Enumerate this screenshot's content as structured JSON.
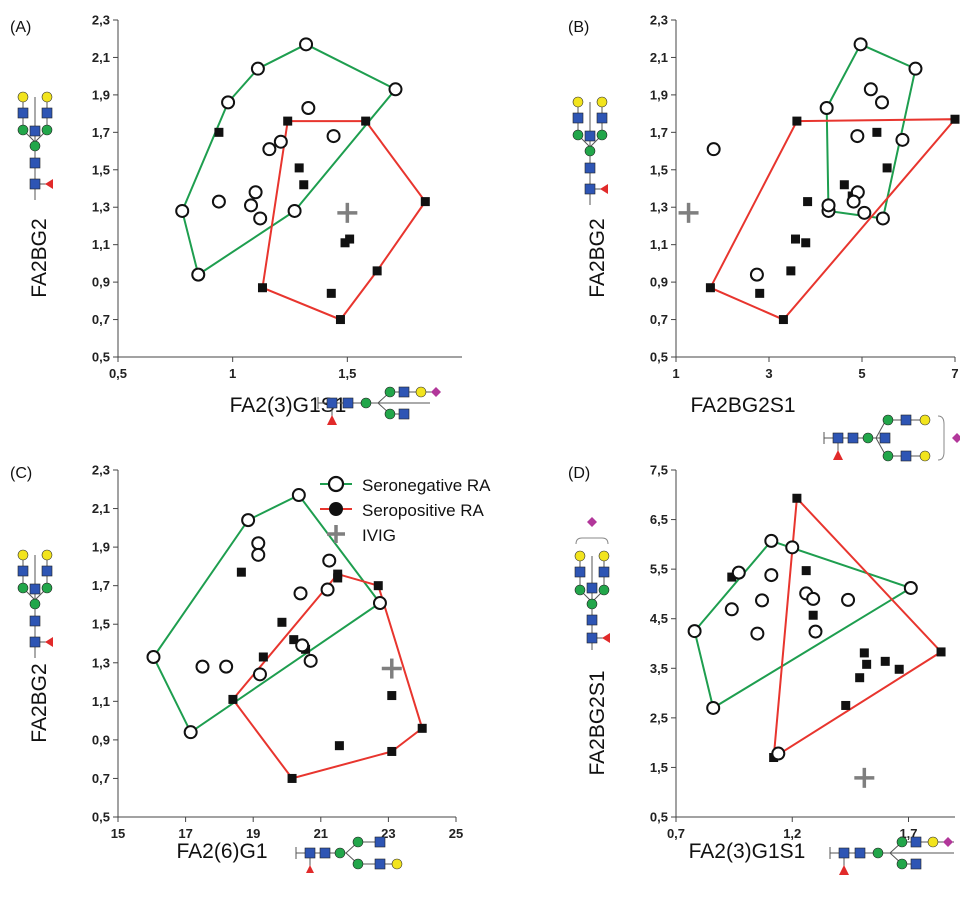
{
  "legend": {
    "items": [
      {
        "label": "Seronegative RA",
        "line_color": "#1e9e4f",
        "marker": "open-circle"
      },
      {
        "label": "Seropositive RA",
        "line_color": "#e8352e",
        "marker": "filled-circle"
      },
      {
        "label": "IVIG",
        "line_color": "#7f7f7f",
        "marker": "cross"
      }
    ]
  },
  "colors": {
    "seronegative": "#1e9e4f",
    "seropositive": "#e8352e",
    "ivig": "#7f7f7f",
    "glycan_blue": "#2e55b4",
    "glycan_green": "#22a64a",
    "glycan_yellow": "#f2e41d",
    "glycan_red": "#e12a2a",
    "glycan_purple": "#b2379a"
  },
  "chart_data": [
    {
      "type": "scatter",
      "panel_label": "(A)",
      "xlabel": "FA2(3)G1S1",
      "ylabel": "FA2BG2",
      "xlim": [
        0.5,
        2.0
      ],
      "ylim": [
        0.5,
        2.3
      ],
      "xticks": [
        "0,5",
        "1",
        "1,5"
      ],
      "yticks": [
        "0,5",
        "0,7",
        "0,9",
        "1,1",
        "1,3",
        "1,5",
        "1,7",
        "1,9",
        "2,1",
        "2,3"
      ],
      "seronegative_hull": [
        [
          0.78,
          1.28
        ],
        [
          0.98,
          1.86
        ],
        [
          1.11,
          2.04
        ],
        [
          1.32,
          2.17
        ],
        [
          1.71,
          1.93
        ],
        [
          1.27,
          1.28
        ],
        [
          0.85,
          0.94
        ]
      ],
      "seronegative_inner": [
        [
          0.94,
          1.33
        ],
        [
          1.08,
          1.31
        ],
        [
          1.1,
          1.38
        ],
        [
          1.12,
          1.24
        ],
        [
          1.16,
          1.61
        ],
        [
          1.21,
          1.65
        ],
        [
          1.33,
          1.83
        ],
        [
          1.44,
          1.68
        ]
      ],
      "seropositive_hull": [
        [
          1.24,
          1.76
        ],
        [
          1.58,
          1.76
        ],
        [
          1.84,
          1.33
        ],
        [
          1.63,
          0.96
        ],
        [
          1.47,
          0.7
        ],
        [
          1.13,
          0.87
        ]
      ],
      "seropositive_inner": [
        [
          0.94,
          1.7
        ],
        [
          1.29,
          1.51
        ],
        [
          1.31,
          1.42
        ],
        [
          1.49,
          1.11
        ],
        [
          1.51,
          1.13
        ],
        [
          1.43,
          0.84
        ]
      ],
      "ivig": [
        [
          1.5,
          1.27
        ]
      ]
    },
    {
      "type": "scatter",
      "panel_label": "(B)",
      "xlabel": "FA2BG2S1",
      "ylabel": "FA2BG2",
      "xlim": [
        1,
        7
      ],
      "ylim": [
        0.5,
        2.3
      ],
      "xticks": [
        "1",
        "3",
        "5",
        "7"
      ],
      "yticks": [
        "0,5",
        "0,7",
        "0,9",
        "1,1",
        "1,3",
        "1,5",
        "1,7",
        "1,9",
        "2,1",
        "2,3"
      ],
      "seronegative_hull": [
        [
          4.97,
          2.17
        ],
        [
          6.15,
          2.04
        ],
        [
          5.45,
          1.24
        ],
        [
          4.28,
          1.28
        ],
        [
          4.24,
          1.83
        ]
      ],
      "seronegative_inner": [
        [
          1.81,
          1.61
        ],
        [
          2.74,
          0.94
        ],
        [
          4.91,
          1.38
        ],
        [
          4.82,
          1.33
        ],
        [
          4.9,
          1.68
        ],
        [
          5.05,
          1.27
        ],
        [
          5.19,
          1.93
        ],
        [
          5.43,
          1.86
        ],
        [
          5.87,
          1.66
        ],
        [
          4.28,
          1.31
        ]
      ],
      "seropositive_hull": [
        [
          3.6,
          1.76
        ],
        [
          7.0,
          1.77
        ],
        [
          3.31,
          0.7
        ],
        [
          1.74,
          0.87
        ]
      ],
      "seropositive_inner": [
        [
          2.8,
          0.84
        ],
        [
          3.47,
          0.96
        ],
        [
          3.57,
          1.13
        ],
        [
          3.83,
          1.33
        ],
        [
          3.79,
          1.11
        ],
        [
          4.62,
          1.42
        ],
        [
          4.79,
          1.36
        ],
        [
          5.32,
          1.7
        ],
        [
          5.54,
          1.51
        ]
      ],
      "ivig": [
        [
          1.27,
          1.27
        ]
      ]
    },
    {
      "type": "scatter",
      "panel_label": "(C)",
      "xlabel": "FA2(6)G1",
      "ylabel": "FA2BG2",
      "xlim": [
        15,
        25
      ],
      "ylim": [
        0.5,
        2.3
      ],
      "xticks": [
        "15",
        "17",
        "19",
        "21",
        "23",
        "25"
      ],
      "yticks": [
        "0,5",
        "0,7",
        "0,9",
        "1,1",
        "1,3",
        "1,5",
        "1,7",
        "1,9",
        "2,1",
        "2,3"
      ],
      "seronegative_hull": [
        [
          16.05,
          1.33
        ],
        [
          18.85,
          2.04
        ],
        [
          20.35,
          2.17
        ],
        [
          22.75,
          1.61
        ],
        [
          17.15,
          0.94
        ]
      ],
      "seronegative_inner": [
        [
          17.5,
          1.28
        ],
        [
          18.2,
          1.28
        ],
        [
          19.15,
          1.92
        ],
        [
          19.15,
          1.86
        ],
        [
          19.2,
          1.24
        ],
        [
          20.4,
          1.66
        ],
        [
          20.45,
          1.39
        ],
        [
          20.7,
          1.31
        ],
        [
          21.2,
          1.68
        ],
        [
          21.25,
          1.83
        ]
      ],
      "seropositive_hull": [
        [
          18.4,
          1.11
        ],
        [
          21.5,
          1.76
        ],
        [
          22.7,
          1.7
        ],
        [
          24.0,
          0.96
        ],
        [
          23.1,
          0.84
        ],
        [
          20.15,
          0.7
        ]
      ],
      "seropositive_inner": [
        [
          18.65,
          1.77
        ],
        [
          19.3,
          1.33
        ],
        [
          19.85,
          1.51
        ],
        [
          20.2,
          1.42
        ],
        [
          20.55,
          1.37
        ],
        [
          21.55,
          0.87
        ],
        [
          23.1,
          1.13
        ],
        [
          21.5,
          1.74
        ]
      ],
      "ivig": [
        [
          23.1,
          1.27
        ]
      ]
    },
    {
      "type": "scatter",
      "panel_label": "(D)",
      "xlabel": "FA2(3)G1S1",
      "ylabel": "FA2BG2S1",
      "xlim": [
        0.7,
        1.9
      ],
      "ylim": [
        0.5,
        7.5
      ],
      "xticks": [
        "0,7",
        "1,2",
        "1,7"
      ],
      "yticks": [
        "0,5",
        "1,5",
        "2,5",
        "3,5",
        "4,5",
        "5,5",
        "6,5",
        "7,5"
      ],
      "seronegative_hull": [
        [
          0.78,
          4.25
        ],
        [
          1.11,
          6.07
        ],
        [
          1.71,
          5.12
        ],
        [
          0.86,
          2.7
        ]
      ],
      "seronegative_inner": [
        [
          0.97,
          5.43
        ],
        [
          1.11,
          5.38
        ],
        [
          0.94,
          4.69
        ],
        [
          1.07,
          4.87
        ],
        [
          1.05,
          4.2
        ],
        [
          1.2,
          5.94
        ],
        [
          1.26,
          5.01
        ],
        [
          1.29,
          4.9
        ],
        [
          1.3,
          4.24
        ],
        [
          1.44,
          4.88
        ],
        [
          1.14,
          1.78
        ]
      ],
      "seropositive_hull": [
        [
          1.22,
          6.93
        ],
        [
          1.84,
          3.83
        ],
        [
          1.12,
          1.7
        ]
      ],
      "seropositive_inner": [
        [
          0.94,
          5.34
        ],
        [
          1.26,
          5.47
        ],
        [
          1.29,
          4.57
        ],
        [
          1.51,
          3.81
        ],
        [
          1.52,
          3.58
        ],
        [
          1.49,
          3.31
        ],
        [
          1.43,
          2.75
        ],
        [
          1.6,
          3.64
        ],
        [
          1.66,
          3.48
        ]
      ],
      "ivig": [
        [
          1.51,
          1.29
        ]
      ]
    }
  ]
}
